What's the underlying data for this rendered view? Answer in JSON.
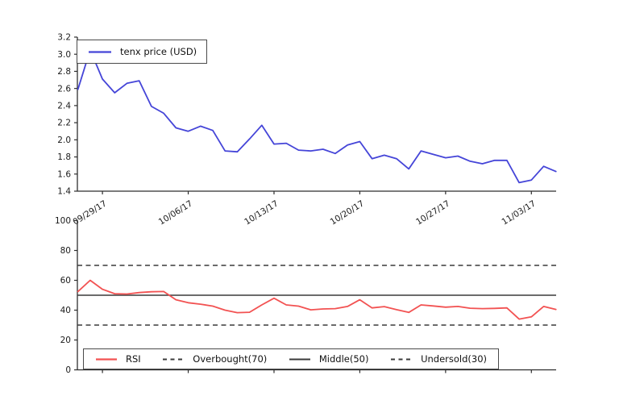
{
  "figure": {
    "background": "#ffffff",
    "axis_color": "#2e2e2e"
  },
  "chart_data": [
    {
      "type": "line",
      "title": "",
      "xlabel": "",
      "ylabel": "",
      "x": [
        "09/27/17",
        "09/28/17",
        "09/29/17",
        "09/30/17",
        "10/01/17",
        "10/02/17",
        "10/03/17",
        "10/04/17",
        "10/05/17",
        "10/06/17",
        "10/07/17",
        "10/08/17",
        "10/09/17",
        "10/10/17",
        "10/11/17",
        "10/12/17",
        "10/13/17",
        "10/14/17",
        "10/15/17",
        "10/16/17",
        "10/17/17",
        "10/18/17",
        "10/19/17",
        "10/20/17",
        "10/21/17",
        "10/22/17",
        "10/23/17",
        "10/24/17",
        "10/25/17",
        "10/26/17",
        "10/27/17",
        "10/28/17",
        "10/29/17",
        "10/30/17",
        "10/31/17",
        "11/01/17",
        "11/02/17",
        "11/03/17",
        "11/04/17",
        "11/05/17"
      ],
      "x_tick_labels": [
        "09/29/17",
        "10/06/17",
        "10/13/17",
        "10/20/17",
        "10/27/17",
        "11/03/17"
      ],
      "series": [
        {
          "name": "tenx price (USD)",
          "color": "#4545d8",
          "values": [
            2.59,
            3.05,
            2.71,
            2.55,
            2.66,
            2.69,
            2.39,
            2.31,
            2.14,
            2.1,
            2.16,
            2.11,
            1.87,
            1.86,
            2.01,
            2.17,
            1.95,
            1.96,
            1.88,
            1.87,
            1.89,
            1.84,
            1.94,
            1.98,
            1.78,
            1.82,
            1.78,
            1.66,
            1.87,
            1.83,
            1.79,
            1.81,
            1.75,
            1.72,
            1.76,
            1.76,
            1.5,
            1.53,
            1.69,
            1.63
          ]
        }
      ],
      "ylim": [
        1.4,
        3.2
      ],
      "yticks": [
        1.4,
        1.6,
        1.8,
        2.0,
        2.2,
        2.4,
        2.6,
        2.8,
        3.0,
        3.2
      ],
      "y_tick_labels": [
        "1.4",
        "1.6",
        "1.8",
        "2.0",
        "2.2",
        "2.4",
        "2.6",
        "2.8",
        "3.0",
        "3.2"
      ],
      "grid": false,
      "legend_position": "upper left"
    },
    {
      "type": "line",
      "title": "",
      "xlabel": "",
      "ylabel": "",
      "x": [
        "09/27/17",
        "09/28/17",
        "09/29/17",
        "09/30/17",
        "10/01/17",
        "10/02/17",
        "10/03/17",
        "10/04/17",
        "10/05/17",
        "10/06/17",
        "10/07/17",
        "10/08/17",
        "10/09/17",
        "10/10/17",
        "10/11/17",
        "10/12/17",
        "10/13/17",
        "10/14/17",
        "10/15/17",
        "10/16/17",
        "10/17/17",
        "10/18/17",
        "10/19/17",
        "10/20/17",
        "10/21/17",
        "10/22/17",
        "10/23/17",
        "10/24/17",
        "10/25/17",
        "10/26/17",
        "10/27/17",
        "10/28/17",
        "10/29/17",
        "10/30/17",
        "10/31/17",
        "11/01/17",
        "11/02/17",
        "11/03/17",
        "11/04/17",
        "11/05/17"
      ],
      "x_tick_labels": [
        "09/29/17",
        "10/06/17",
        "10/13/17",
        "10/20/17",
        "10/27/17",
        "11/03/17"
      ],
      "x_tick_labels_visible": false,
      "series": [
        {
          "name": "RSI",
          "color": "#f25252",
          "values": [
            52.5,
            60,
            54,
            51,
            50.8,
            51.8,
            52.3,
            52.5,
            47,
            45,
            44,
            42.7,
            40,
            38.3,
            38.6,
            43.5,
            48,
            43.5,
            42.7,
            40.2,
            40.8,
            41,
            42.5,
            47,
            41.5,
            42.4,
            40.3,
            38.5,
            43.5,
            42.8,
            42,
            42.5,
            41.3,
            41,
            41.2,
            41.5,
            34,
            35.5,
            42.5,
            40.5
          ]
        }
      ],
      "reference_lines": [
        {
          "name": "Overbought(70)",
          "value": 70,
          "style": "dashed",
          "color": "#3a3a3a"
        },
        {
          "name": "Middle(50)",
          "value": 50,
          "style": "solid",
          "color": "#3a3a3a"
        },
        {
          "name": "Undersold(30)",
          "value": 30,
          "style": "dashed",
          "color": "#3a3a3a"
        }
      ],
      "ylim": [
        0,
        100
      ],
      "yticks": [
        0,
        20,
        40,
        60,
        80,
        100
      ],
      "y_tick_labels": [
        "0",
        "20",
        "40",
        "60",
        "80",
        "100"
      ],
      "grid": false,
      "legend_position": "lower center"
    }
  ]
}
